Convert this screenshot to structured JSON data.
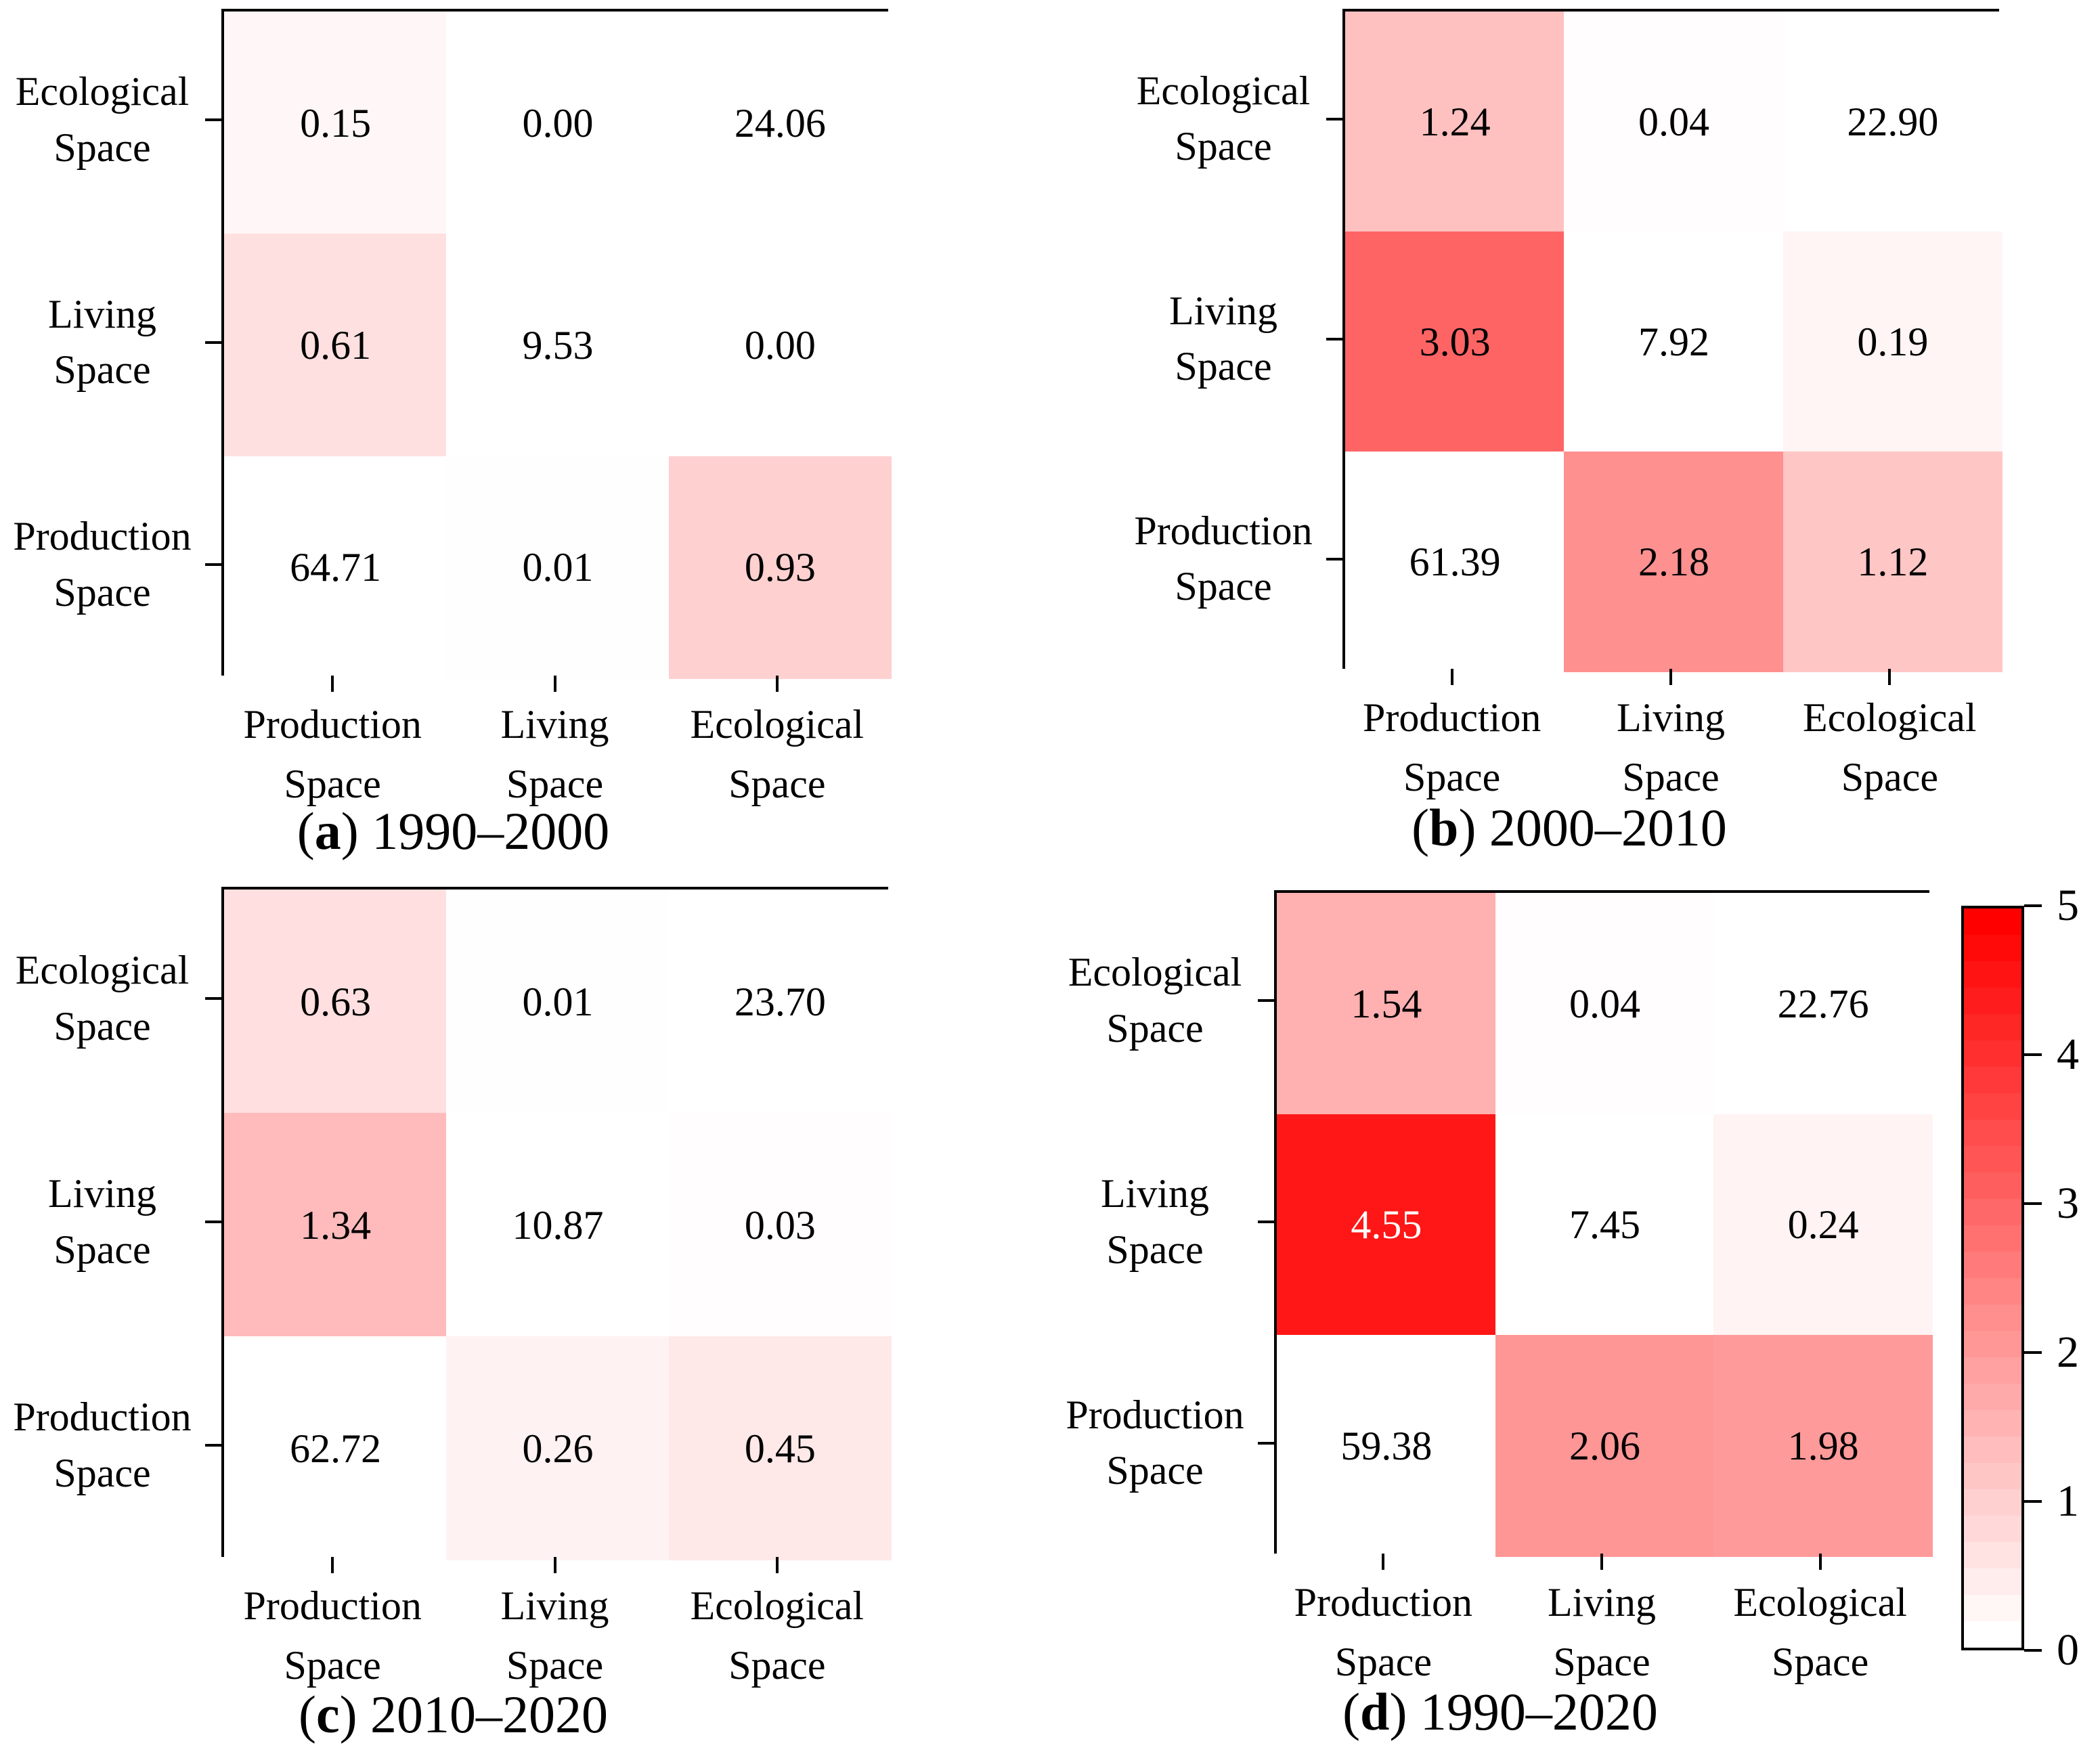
{
  "figure": {
    "background_color": "#ffffff",
    "colormap": {
      "min": 0,
      "max": 5,
      "low_color": "#ffffff",
      "high_color": "#ff0000",
      "white_text_threshold": 3.75,
      "masked_cell_color": "#ffffff",
      "note": "cells where row category equals column category are masked white"
    },
    "colorbar": {
      "orientation": "vertical",
      "tick_labels": [
        "5",
        "4",
        "3",
        "2",
        "1",
        "0"
      ],
      "steps": 28
    }
  },
  "chart_data": [
    {
      "type": "heatmap",
      "panel_letter": "a",
      "period": "1990–2000",
      "x_categories": [
        "Production Space",
        "Living Space",
        "Ecological Space"
      ],
      "y_categories": [
        "Ecological Space",
        "Living Space",
        "Production Space"
      ],
      "values": [
        [
          0.15,
          0.0,
          24.06
        ],
        [
          0.61,
          9.53,
          0.0
        ],
        [
          64.71,
          0.01,
          0.93
        ]
      ],
      "value_labels": [
        [
          "0.15",
          "0.00",
          "24.06"
        ],
        [
          "0.61",
          "9.53",
          "0.00"
        ],
        [
          "64.71",
          "0.01",
          "0.93"
        ]
      ]
    },
    {
      "type": "heatmap",
      "panel_letter": "b",
      "period": "2000–2010",
      "x_categories": [
        "Production Space",
        "Living Space",
        "Ecological Space"
      ],
      "y_categories": [
        "Ecological Space",
        "Living Space",
        "Production Space"
      ],
      "values": [
        [
          1.24,
          0.04,
          22.9
        ],
        [
          3.03,
          7.92,
          0.19
        ],
        [
          61.39,
          2.18,
          1.12
        ]
      ],
      "value_labels": [
        [
          "1.24",
          "0.04",
          "22.90"
        ],
        [
          "3.03",
          "7.92",
          "0.19"
        ],
        [
          "61.39",
          "2.18",
          "1.12"
        ]
      ]
    },
    {
      "type": "heatmap",
      "panel_letter": "c",
      "period": "2010–2020",
      "x_categories": [
        "Production Space",
        "Living Space",
        "Ecological Space"
      ],
      "y_categories": [
        "Ecological Space",
        "Living Space",
        "Production Space"
      ],
      "values": [
        [
          0.63,
          0.01,
          23.7
        ],
        [
          1.34,
          10.87,
          0.03
        ],
        [
          62.72,
          0.26,
          0.45
        ]
      ],
      "value_labels": [
        [
          "0.63",
          "0.01",
          "23.70"
        ],
        [
          "1.34",
          "10.87",
          "0.03"
        ],
        [
          "62.72",
          "0.26",
          "0.45"
        ]
      ]
    },
    {
      "type": "heatmap",
      "panel_letter": "d",
      "period": "1990–2020",
      "x_categories": [
        "Production Space",
        "Living Space",
        "Ecological Space"
      ],
      "y_categories": [
        "Ecological Space",
        "Living Space",
        "Production Space"
      ],
      "values": [
        [
          1.54,
          0.04,
          22.76
        ],
        [
          4.55,
          7.45,
          0.24
        ],
        [
          59.38,
          2.06,
          1.98
        ]
      ],
      "value_labels": [
        [
          "1.54",
          "0.04",
          "22.76"
        ],
        [
          "4.55",
          "7.45",
          "0.24"
        ],
        [
          "59.38",
          "2.06",
          "1.98"
        ]
      ]
    }
  ]
}
